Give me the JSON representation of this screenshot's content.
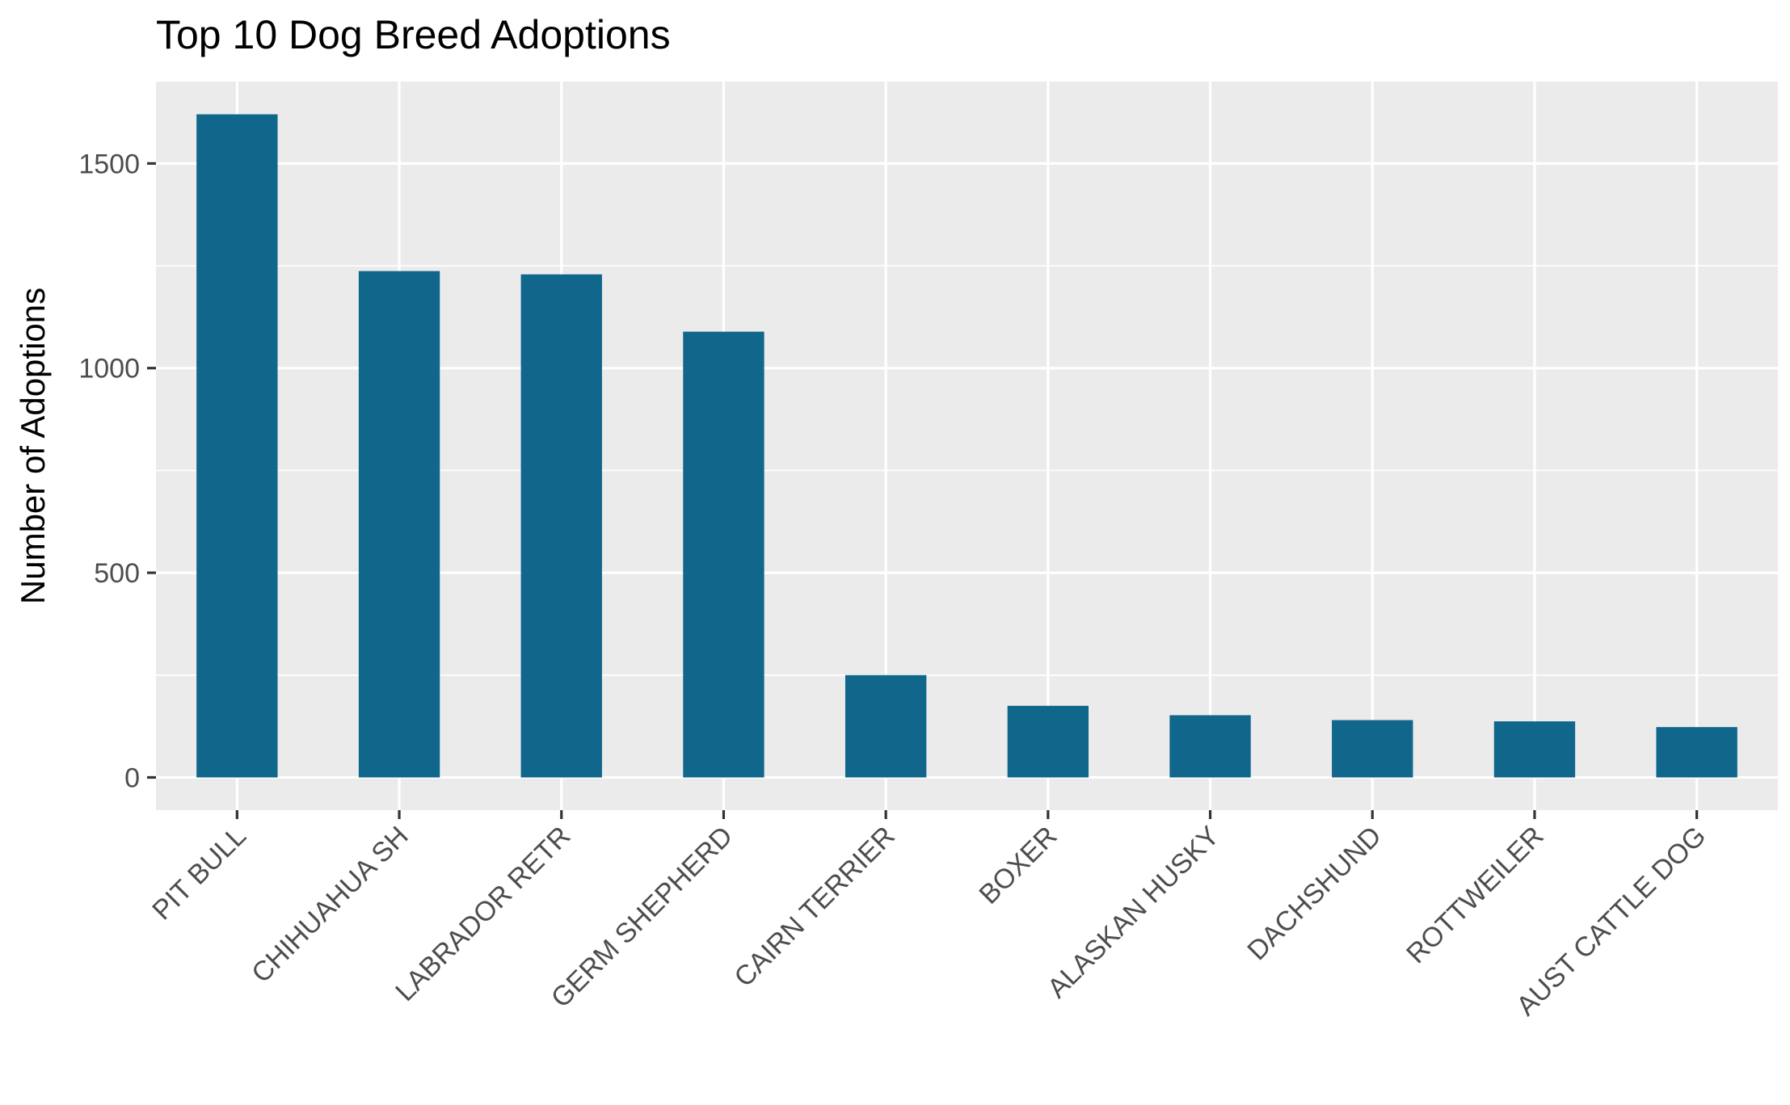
{
  "chart_data": {
    "type": "bar",
    "title": "Top 10 Dog Breed Adoptions",
    "xlabel": "",
    "ylabel": "Number of Adoptions",
    "categories": [
      "PIT BULL",
      "CHIHUAHUA SH",
      "LABRADOR RETR",
      "GERM SHEPHERD",
      "CAIRN TERRIER",
      "BOXER",
      "ALASKAN HUSKY",
      "DACHSHUND",
      "ROTTWEILER",
      "AUST CATTLE DOG"
    ],
    "values": [
      1620,
      1237,
      1229,
      1089,
      250,
      175,
      152,
      140,
      137,
      123
    ],
    "ylim": [
      -80,
      1700
    ],
    "yticks": [
      0,
      500,
      1000,
      1500
    ],
    "ytick_labels": [
      "0",
      "500",
      "1000",
      "1500"
    ],
    "grid": true,
    "legend": "none",
    "colors": {
      "bar": "#10668B",
      "panel": "#EBEBEB",
      "grid": "#FFFFFF",
      "tick_text": "#4D4D4D",
      "tick_mark": "#333333"
    }
  }
}
